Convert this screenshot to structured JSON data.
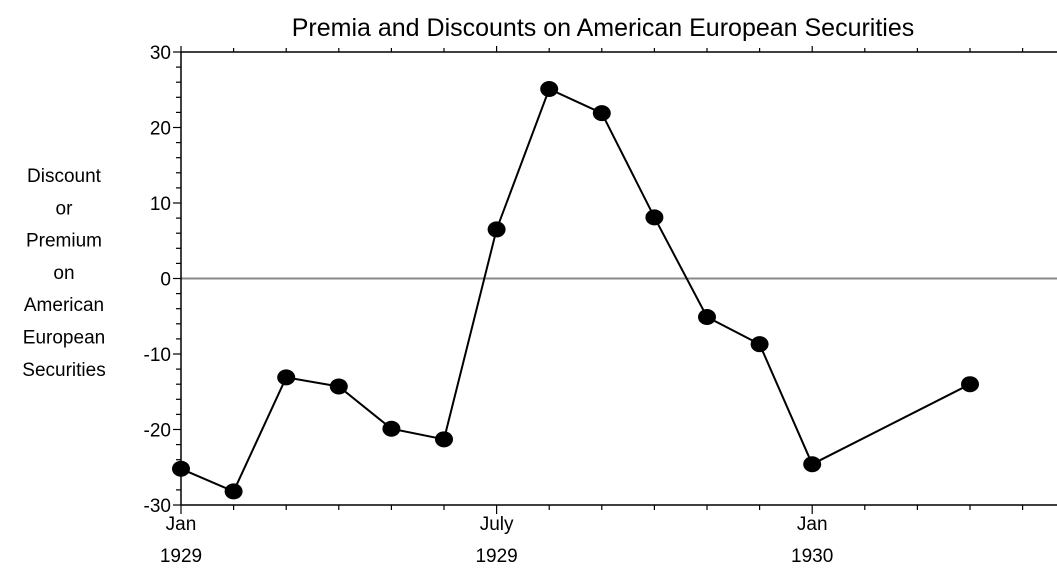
{
  "chart_data": {
    "type": "line",
    "title": "Premia and Discounts on American European Securities",
    "ylabel_lines": [
      "Discount",
      "or",
      "Premium",
      "on",
      "American",
      "European",
      "Securities"
    ],
    "xlabel": "",
    "ylim": [
      -30,
      30
    ],
    "yticks": [
      30,
      20,
      10,
      0,
      -10,
      -20,
      -30
    ],
    "xlim": [
      0,
      17
    ],
    "x_tick_labels": [
      {
        "x": 0,
        "month": "Jan",
        "year": "1929"
      },
      {
        "x": 6,
        "month": "July",
        "year": "1929"
      },
      {
        "x": 12,
        "month": "Jan",
        "year": "1930"
      }
    ],
    "reference_line": 0,
    "grid": false,
    "legend": "none",
    "series": [
      {
        "x": [
          0,
          1,
          2,
          3,
          4,
          5,
          6,
          7,
          8,
          9,
          10,
          11,
          12,
          15
        ],
        "values": [
          -25.2,
          -28.2,
          -13.1,
          -14.3,
          -19.9,
          -21.3,
          6.5,
          25.1,
          21.9,
          8.1,
          -5.1,
          -8.7,
          -24.6,
          -14.0
        ]
      }
    ],
    "colors": {
      "line": "#000000",
      "marker": "#000000",
      "zero_line": "#888888",
      "axis": "#000000"
    }
  }
}
